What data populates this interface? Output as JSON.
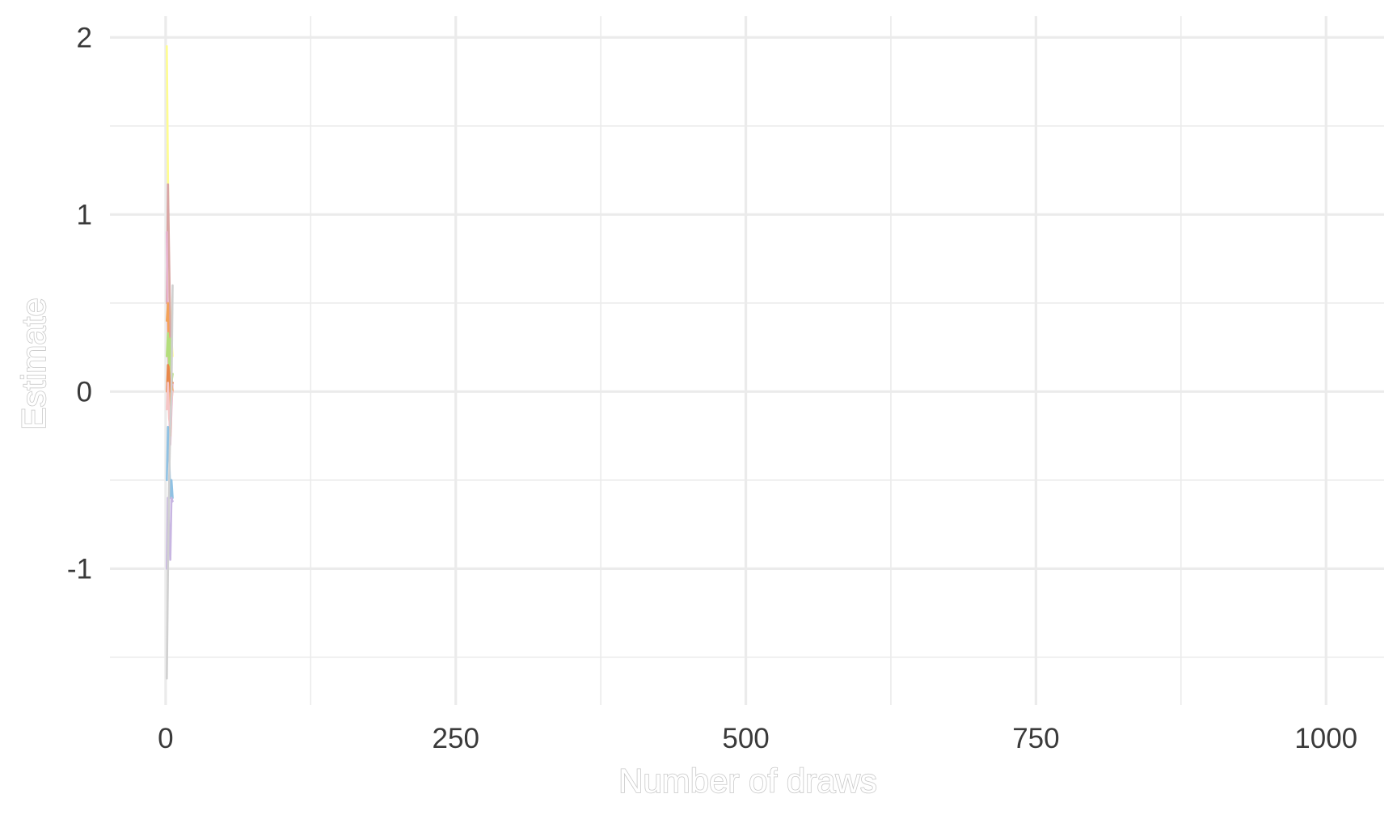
{
  "chart_data": {
    "type": "line",
    "title": "",
    "xlabel": "Number of draws",
    "ylabel": "Estimate",
    "xlim": [
      -48,
      1050
    ],
    "ylim": [
      -1.77,
      2.12
    ],
    "x_ticks": [
      0,
      250,
      500,
      750,
      1000
    ],
    "x_tick_labels": [
      "0",
      "250",
      "500",
      "750",
      "1000"
    ],
    "x_minor_ticks": [
      125,
      375,
      625,
      875
    ],
    "y_ticks": [
      -1,
      0,
      1,
      2
    ],
    "y_tick_labels": [
      "-1",
      "0",
      "1",
      "2"
    ],
    "y_minor_ticks": [
      -1.5,
      -0.5,
      0.5,
      1.5
    ],
    "grid": true,
    "legend": "none",
    "background_color": "#ffffff",
    "grid_color": "#ebebeb",
    "series": [
      {
        "color": "#fffd8f",
        "x": [
          1,
          2,
          3,
          4,
          5,
          6
        ],
        "y": [
          1.95,
          1.2,
          0.6,
          0.45,
          0.3,
          0.2
        ]
      },
      {
        "color": "#d9a5a3",
        "x": [
          1,
          2,
          3,
          4,
          5,
          6
        ],
        "y": [
          0.5,
          1.17,
          0.75,
          0.35,
          0.1,
          0.0
        ]
      },
      {
        "color": "#e8b4d0",
        "x": [
          1,
          2,
          3,
          4,
          5,
          6
        ],
        "y": [
          0.9,
          0.3,
          -0.1,
          -0.3,
          -0.1,
          0.05
        ]
      },
      {
        "color": "#f4a259",
        "x": [
          1,
          2,
          3,
          4,
          5,
          6
        ],
        "y": [
          0.4,
          0.5,
          0.1,
          -0.25,
          0.05,
          0.0
        ]
      },
      {
        "color": "#b4de7c",
        "x": [
          1,
          2,
          3,
          4,
          5,
          6
        ],
        "y": [
          0.2,
          0.33,
          0.15,
          0.3,
          0.05,
          0.1
        ]
      },
      {
        "color": "#e8874a",
        "x": [
          1,
          2,
          3,
          4,
          5,
          6
        ],
        "y": [
          0.0,
          0.15,
          0.1,
          0.0,
          0.05,
          0.05
        ]
      },
      {
        "color": "#f6c6c6",
        "x": [
          1,
          2,
          3,
          4,
          5,
          6
        ],
        "y": [
          -0.1,
          0.05,
          -0.15,
          -0.2,
          -0.05,
          0.0
        ]
      },
      {
        "color": "#8fc1e3",
        "x": [
          1,
          2,
          3,
          4,
          5,
          6
        ],
        "y": [
          -0.5,
          -0.2,
          -0.35,
          -0.6,
          -0.5,
          -0.6
        ]
      },
      {
        "color": "#c8b6e2",
        "x": [
          1,
          2,
          3,
          4,
          5,
          6
        ],
        "y": [
          -1.0,
          -0.6,
          -0.8,
          -0.95,
          -0.6,
          -0.62
        ]
      },
      {
        "color": "#d0d0d0",
        "x": [
          1,
          2,
          3,
          4,
          5,
          6
        ],
        "y": [
          -1.62,
          -1.0,
          -0.5,
          -0.2,
          0.0,
          0.6
        ]
      }
    ]
  }
}
